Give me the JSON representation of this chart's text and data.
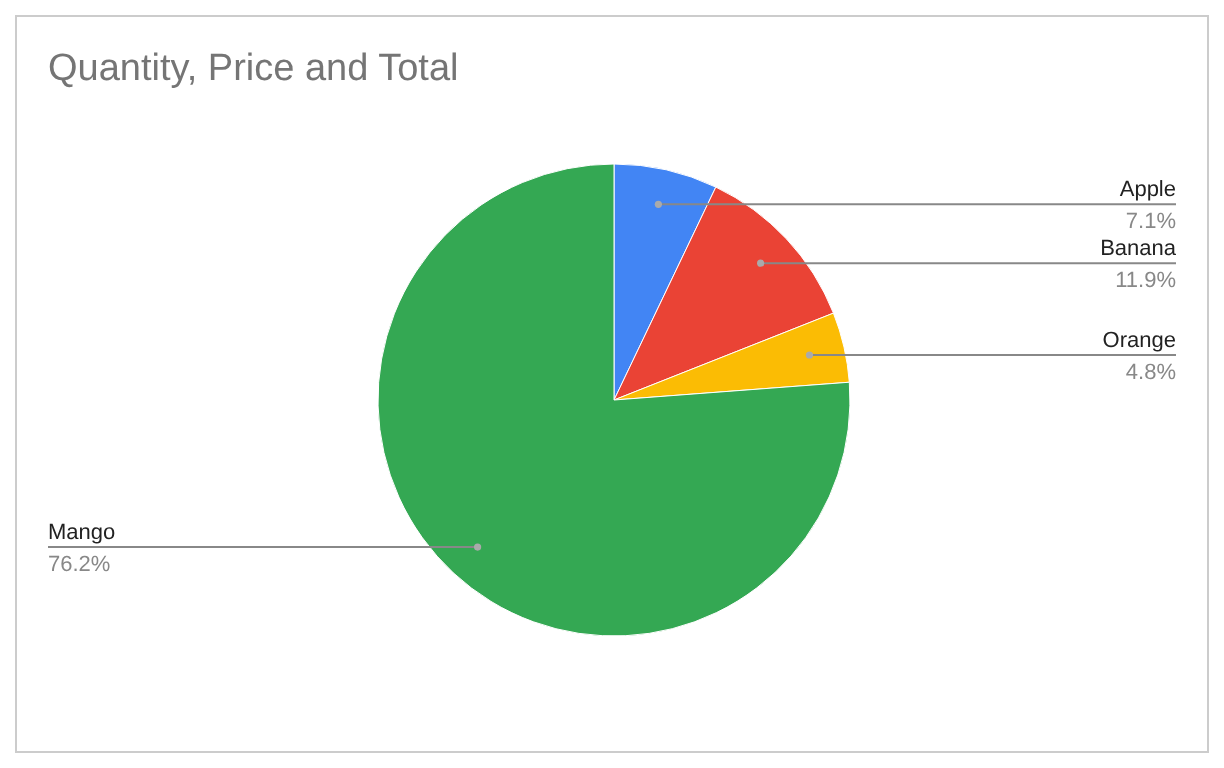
{
  "chart_data": {
    "type": "pie",
    "title": "Quantity, Price and Total",
    "categories": [
      "Apple",
      "Banana",
      "Orange",
      "Mango"
    ],
    "values": [
      7.1,
      11.9,
      4.8,
      76.2
    ],
    "value_labels": [
      "7.1%",
      "11.9%",
      "4.8%",
      "76.2%"
    ],
    "colors": [
      "#4285f4",
      "#ea4335",
      "#fbbc04",
      "#34a853"
    ]
  }
}
